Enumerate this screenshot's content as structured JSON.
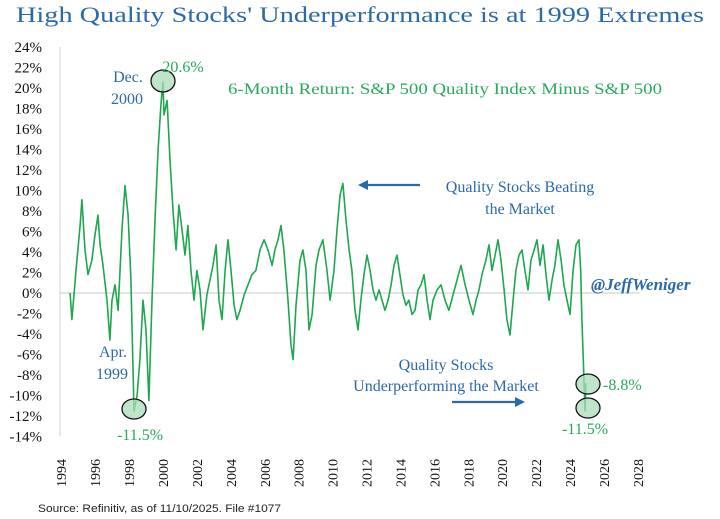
{
  "colors": {
    "title": "#2b6aa8",
    "series": "#1fa750",
    "annotation_blue": "#2b6aa8",
    "annotation_green": "#2aa95a",
    "highlight_fill": "#a9dbb8",
    "zero_line": "#c8c8c8",
    "axis": "#d0d0d0"
  },
  "chart_data": {
    "type": "line",
    "title": "High Quality Stocks' Underperformance is at 1999 Extremes",
    "subtitle": "6-Month Return: S&P 500 Quality Index Minus S&P 500",
    "xlabel": "",
    "ylabel": "",
    "xlim": [
      1994,
      2028
    ],
    "ylim": [
      -14,
      24
    ],
    "x_ticks": [
      "1994",
      "1996",
      "1998",
      "2000",
      "2002",
      "2004",
      "2006",
      "2008",
      "2010",
      "2012",
      "2014",
      "2016",
      "2018",
      "2020",
      "2022",
      "2024",
      "2026",
      "2028"
    ],
    "y_ticks": [
      "24%",
      "22%",
      "20%",
      "18%",
      "16%",
      "14%",
      "12%",
      "10%",
      "8%",
      "6%",
      "4%",
      "2%",
      "0%",
      "-2%",
      "-4%",
      "-6%",
      "-8%",
      "-10%",
      "-12%",
      "-14%"
    ],
    "y_tick_values": [
      24,
      22,
      20,
      18,
      16,
      14,
      12,
      10,
      8,
      6,
      4,
      2,
      0,
      -2,
      -4,
      -6,
      -8,
      -10,
      -12,
      -14
    ],
    "grid": false,
    "zero_line": true,
    "legend": "none",
    "x": [
      1995.44,
      1995.55,
      1995.79,
      1996.03,
      1996.14,
      1996.32,
      1996.5,
      1996.73,
      1996.91,
      1997.09,
      1997.21,
      1997.38,
      1997.62,
      1997.79,
      1997.91,
      1998.09,
      1998.27,
      1998.5,
      1998.68,
      1998.86,
      1999.03,
      1999.21,
      1999.39,
      1999.56,
      1999.74,
      1999.92,
      2000.09,
      2000.27,
      2000.45,
      2000.63,
      2000.8,
      2000.92,
      2000.98,
      2001.16,
      2001.33,
      2001.51,
      2001.69,
      2001.86,
      2002.04,
      2002.22,
      2002.39,
      2002.57,
      2002.75,
      2002.92,
      2003.1,
      2003.28,
      2003.51,
      2003.69,
      2003.87,
      2004.05,
      2004.22,
      2004.4,
      2004.58,
      2004.75,
      2004.93,
      2005.11,
      2005.28,
      2005.46,
      2005.7,
      2005.93,
      2006.17,
      2006.4,
      2006.64,
      2006.88,
      2007.11,
      2007.35,
      2007.52,
      2007.7,
      2007.88,
      2008.05,
      2008.29,
      2008.47,
      2008.59,
      2008.76,
      2009.0,
      2009.17,
      2009.35,
      2009.53,
      2009.71,
      2009.94,
      2010.12,
      2010.35,
      2010.59,
      2010.77,
      2011.0,
      2011.18,
      2011.36,
      2011.53,
      2011.71,
      2011.89,
      2012.06,
      2012.24,
      2012.42,
      2012.59,
      2012.77,
      2012.95,
      2013.13,
      2013.3,
      2013.48,
      2013.66,
      2013.83,
      2014.01,
      2014.19,
      2014.37,
      2014.54,
      2014.72,
      2014.89,
      2015.07,
      2015.25,
      2015.42,
      2015.6,
      2015.78,
      2015.96,
      2016.13,
      2016.31,
      2016.49,
      2016.66,
      2016.84,
      2017.08,
      2017.31,
      2017.55,
      2017.78,
      2018.02,
      2018.26,
      2018.49,
      2018.73,
      2018.96,
      2019.2,
      2019.38,
      2019.55,
      2019.73,
      2019.96,
      2020.14,
      2020.32,
      2020.5,
      2020.67,
      2020.85,
      2021.03,
      2021.2,
      2021.38,
      2021.56,
      2021.73,
      2021.91,
      2022.09,
      2022.26,
      2022.44,
      2022.62,
      2022.8,
      2022.97,
      2023.15,
      2023.33,
      2023.5,
      2023.68,
      2023.86,
      2024.03,
      2024.21,
      2024.39,
      2024.56,
      2024.74,
      2024.92,
      2025.1,
      2025.27,
      2025.45,
      2025.55,
      2025.62,
      2025.7,
      2025.76,
      2025.8,
      2025.86
    ],
    "series": [
      {
        "values": [
          0.0,
          -2.6,
          2.2,
          6.6,
          9.1,
          4.2,
          1.8,
          3.2,
          5.7,
          7.6,
          4.7,
          2.7,
          -0.7,
          -4.6,
          -0.7,
          0.8,
          -1.7,
          6.2,
          10.5,
          7.6,
          1.3,
          -11.5,
          -10.0,
          -6.5,
          -0.7,
          -3.6,
          -10.5,
          -0.7,
          7.1,
          14.0,
          18.5,
          20.6,
          17.4,
          18.8,
          13.0,
          8.1,
          4.2,
          8.6,
          6.2,
          3.7,
          6.6,
          2.2,
          -0.7,
          2.2,
          0.3,
          -3.6,
          -0.2,
          1.3,
          2.7,
          4.7,
          -0.7,
          -2.6,
          2.2,
          5.2,
          2.2,
          -1.2,
          -2.6,
          -1.7,
          -0.2,
          0.8,
          1.8,
          2.2,
          4.2,
          5.2,
          4.2,
          2.7,
          4.2,
          5.2,
          6.6,
          4.2,
          -0.7,
          -5.1,
          -6.5,
          -1.2,
          3.2,
          4.2,
          2.2,
          -3.6,
          -2.1,
          2.7,
          4.2,
          5.2,
          2.2,
          -0.7,
          2.2,
          6.2,
          9.6,
          10.7,
          7.1,
          4.2,
          2.2,
          -1.7,
          -3.6,
          -0.7,
          1.8,
          3.7,
          2.2,
          0.3,
          -0.7,
          0.3,
          -0.7,
          -1.7,
          -0.7,
          0.8,
          2.7,
          3.7,
          1.8,
          -0.2,
          -1.2,
          -0.7,
          -2.1,
          -1.7,
          0.3,
          0.8,
          1.8,
          -0.7,
          -2.6,
          -0.7,
          0.3,
          0.8,
          -0.7,
          -1.7,
          -0.2,
          1.3,
          2.7,
          0.8,
          -0.7,
          -2.1,
          -0.7,
          0.3,
          1.8,
          3.2,
          4.7,
          2.2,
          3.7,
          5.2,
          3.2,
          0.3,
          -2.6,
          -4.1,
          -0.7,
          2.2,
          3.7,
          4.2,
          2.2,
          0.3,
          3.2,
          4.2,
          5.2,
          2.7,
          4.7,
          1.8,
          -0.7,
          1.3,
          2.7,
          5.2,
          3.2,
          0.8,
          -0.7,
          -2.1,
          2.2,
          4.7,
          5.2,
          2.2,
          -2.6,
          -6.5,
          -9.5,
          -11.5,
          -8.8
        ]
      }
    ],
    "annotations": {
      "peak_label": "20.6%",
      "peak_date": [
        "Dec.",
        "2000"
      ],
      "trough_1999_label": "-11.5%",
      "trough_1999_date": [
        "Apr.",
        "1999"
      ],
      "latest_label": "-8.8%",
      "recent_low_label": "-11.5%",
      "beating": [
        "Quality Stocks Beating",
        "the Market"
      ],
      "underperforming": [
        "Quality Stocks",
        "Underperforming the Market"
      ],
      "handle": "@JeffWeniger"
    },
    "source": "Source: Refinitiv, as of 11/10/2025. File #1077"
  }
}
